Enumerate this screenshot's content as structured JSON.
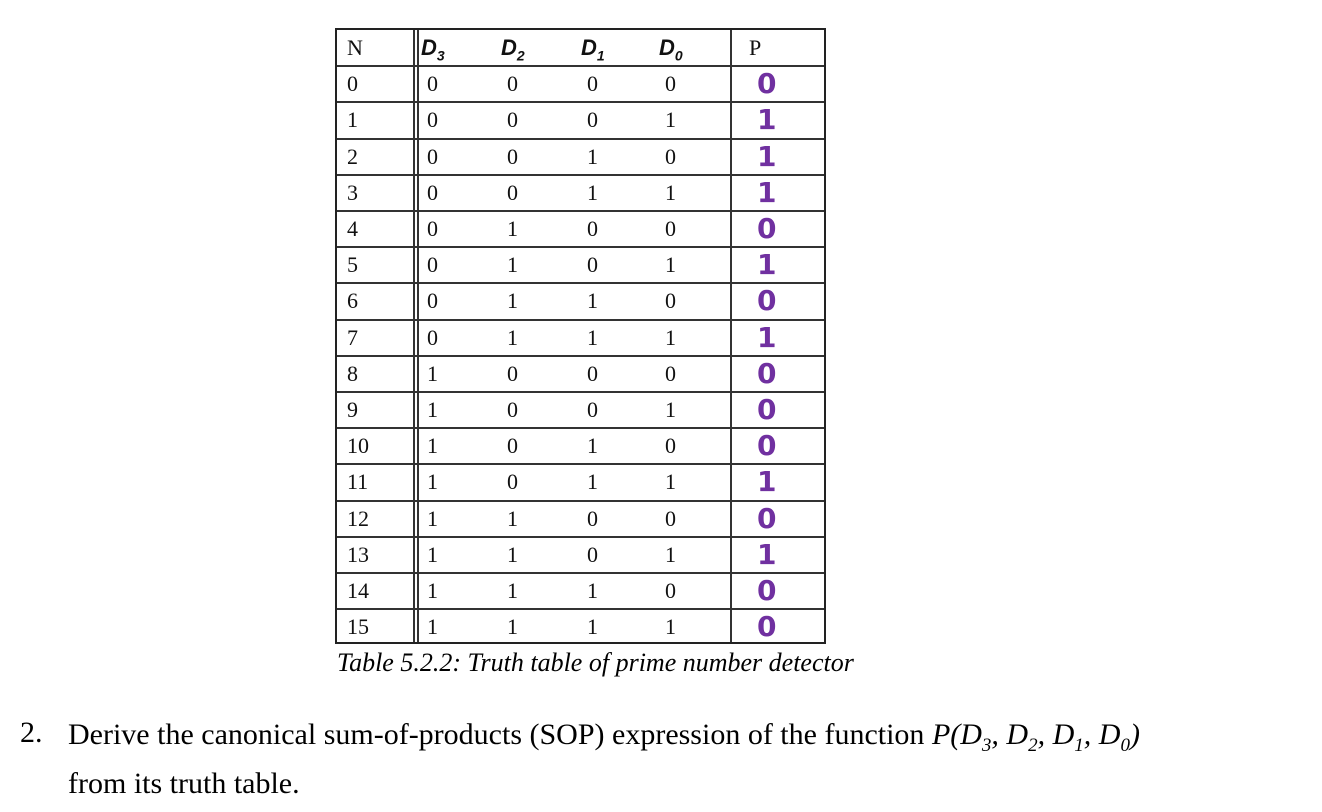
{
  "table": {
    "header": [
      {
        "text": "N"
      },
      {
        "text": "D",
        "sub": "3"
      },
      {
        "text": "D",
        "sub": "2"
      },
      {
        "text": "D",
        "sub": "1"
      },
      {
        "text": "D",
        "sub": "0"
      },
      {
        "text": "P"
      }
    ],
    "rows": [
      [
        "0",
        "0",
        "0",
        "0",
        "0",
        "0"
      ],
      [
        "1",
        "0",
        "0",
        "0",
        "1",
        "1"
      ],
      [
        "2",
        "0",
        "0",
        "1",
        "0",
        "1"
      ],
      [
        "3",
        "0",
        "0",
        "1",
        "1",
        "1"
      ],
      [
        "4",
        "0",
        "1",
        "0",
        "0",
        "0"
      ],
      [
        "5",
        "0",
        "1",
        "0",
        "1",
        "1"
      ],
      [
        "6",
        "0",
        "1",
        "1",
        "0",
        "0"
      ],
      [
        "7",
        "0",
        "1",
        "1",
        "1",
        "1"
      ],
      [
        "8",
        "1",
        "0",
        "0",
        "0",
        "0"
      ],
      [
        "9",
        "1",
        "0",
        "0",
        "1",
        "0"
      ],
      [
        "10",
        "1",
        "0",
        "1",
        "0",
        "0"
      ],
      [
        "11",
        "1",
        "0",
        "1",
        "1",
        "1"
      ],
      [
        "12",
        "1",
        "1",
        "0",
        "0",
        "0"
      ],
      [
        "13",
        "1",
        "1",
        "0",
        "1",
        "1"
      ],
      [
        "14",
        "1",
        "1",
        "1",
        "0",
        "0"
      ],
      [
        "15",
        "1",
        "1",
        "1",
        "1",
        "0"
      ]
    ],
    "caption": "Table 5.2.2: Truth table of prime number detector"
  },
  "question": {
    "number": "2.",
    "segments": [
      {
        "text": "Derive the canonical sum-of-products (SOP) expression of the function "
      },
      {
        "text": "P(D"
      },
      {
        "sub": "3"
      },
      {
        "text": ", D"
      },
      {
        "sub": "2"
      },
      {
        "text": ", D"
      },
      {
        "sub": "1"
      },
      {
        "text": ", D"
      },
      {
        "sub": "0"
      },
      {
        "text": ")"
      },
      {
        "text": "from its truth table."
      }
    ]
  }
}
